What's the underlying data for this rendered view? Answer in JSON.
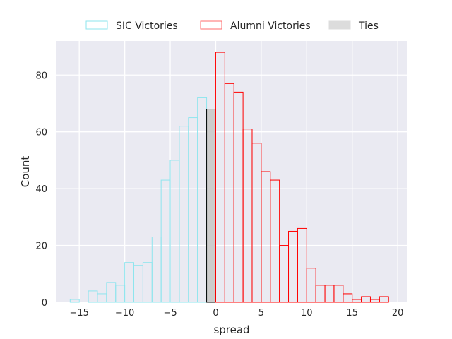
{
  "chart_data": {
    "type": "bar",
    "subtype": "histogram",
    "xlabel": "spread",
    "ylabel": "Count",
    "xlim": [
      -17.5,
      21.0
    ],
    "ylim": [
      0,
      92
    ],
    "xticks": [
      -15,
      -10,
      -5,
      0,
      5,
      10,
      15,
      20
    ],
    "xtick_labels": [
      "−15",
      "−10",
      "−5",
      "0",
      "5",
      "10",
      "15",
      "20"
    ],
    "yticks": [
      0,
      20,
      40,
      60,
      80
    ],
    "ytick_labels": [
      "0",
      "20",
      "40",
      "60",
      "80"
    ],
    "grid": true,
    "legend_position": "top-center (above plot)",
    "bin_width": 1,
    "series": [
      {
        "name": "SIC Victories",
        "color": "#8ee5ee",
        "fill": "none",
        "bins": [
          {
            "x0": -16,
            "x1": -15,
            "count": 1
          },
          {
            "x0": -15,
            "x1": -14,
            "count": 0
          },
          {
            "x0": -14,
            "x1": -13,
            "count": 4
          },
          {
            "x0": -13,
            "x1": -12,
            "count": 3
          },
          {
            "x0": -12,
            "x1": -11,
            "count": 7
          },
          {
            "x0": -11,
            "x1": -10,
            "count": 6
          },
          {
            "x0": -10,
            "x1": -9,
            "count": 14
          },
          {
            "x0": -9,
            "x1": -8,
            "count": 13
          },
          {
            "x0": -8,
            "x1": -7,
            "count": 14
          },
          {
            "x0": -7,
            "x1": -6,
            "count": 23
          },
          {
            "x0": -6,
            "x1": -5,
            "count": 43
          },
          {
            "x0": -5,
            "x1": -4,
            "count": 50
          },
          {
            "x0": -4,
            "x1": -3,
            "count": 62
          },
          {
            "x0": -3,
            "x1": -2,
            "count": 65
          },
          {
            "x0": -2,
            "x1": -1,
            "count": 72
          }
        ]
      },
      {
        "name": "Ties",
        "color": "#000000",
        "fill": "#cccccc",
        "bins": [
          {
            "x0": -1,
            "x1": 0,
            "count": 68
          }
        ]
      },
      {
        "name": "Alumni Victories",
        "color": "#ff0000",
        "fill": "none",
        "bins": [
          {
            "x0": 0,
            "x1": 1,
            "count": 88
          },
          {
            "x0": 1,
            "x1": 2,
            "count": 77
          },
          {
            "x0": 2,
            "x1": 3,
            "count": 74
          },
          {
            "x0": 3,
            "x1": 4,
            "count": 61
          },
          {
            "x0": 4,
            "x1": 5,
            "count": 56
          },
          {
            "x0": 5,
            "x1": 6,
            "count": 46
          },
          {
            "x0": 6,
            "x1": 7,
            "count": 43
          },
          {
            "x0": 7,
            "x1": 8,
            "count": 20
          },
          {
            "x0": 8,
            "x1": 9,
            "count": 25
          },
          {
            "x0": 9,
            "x1": 10,
            "count": 26
          },
          {
            "x0": 10,
            "x1": 11,
            "count": 12
          },
          {
            "x0": 11,
            "x1": 12,
            "count": 6
          },
          {
            "x0": 12,
            "x1": 13,
            "count": 6
          },
          {
            "x0": 13,
            "x1": 14,
            "count": 6
          },
          {
            "x0": 14,
            "x1": 15,
            "count": 3
          },
          {
            "x0": 15,
            "x1": 16,
            "count": 1
          },
          {
            "x0": 16,
            "x1": 17,
            "count": 2
          },
          {
            "x0": 17,
            "x1": 18,
            "count": 1
          },
          {
            "x0": 18,
            "x1": 19,
            "count": 2
          }
        ]
      }
    ],
    "legend": [
      {
        "label": "SIC Victories",
        "edge": "#8ee5ee",
        "fill": "none"
      },
      {
        "label": "Alumni Victories",
        "edge": "#ff6b6b",
        "fill": "none"
      },
      {
        "label": "Ties",
        "edge": "#dcdcdc",
        "fill": "#dcdcdc"
      }
    ],
    "colors": {
      "plot_background": "#eaeaf2",
      "grid": "#ffffff",
      "text": "#262626"
    }
  }
}
